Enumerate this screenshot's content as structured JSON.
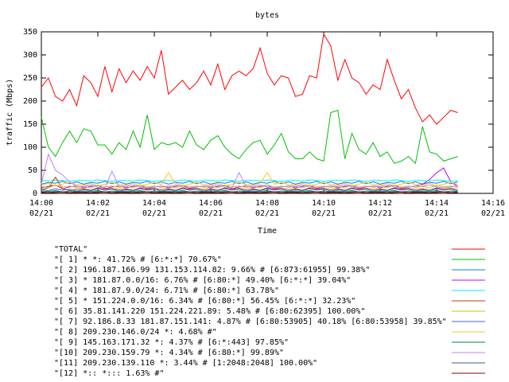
{
  "chart_data": {
    "type": "line",
    "title": "bytes",
    "x_label": "Time",
    "y_label": "traffic (Mbps)",
    "xlim": [
      0,
      16
    ],
    "ylim": [
      0,
      350
    ],
    "xticks": [
      {
        "value": 0,
        "label": "14:00\n02/21"
      },
      {
        "value": 2,
        "label": "14:02\n02/21"
      },
      {
        "value": 4,
        "label": "14:04\n02/21"
      },
      {
        "value": 6,
        "label": "14:06\n02/21"
      },
      {
        "value": 8,
        "label": "14:08\n02/21"
      },
      {
        "value": 10,
        "label": "14:10\n02/21"
      },
      {
        "value": 12,
        "label": "14:12\n02/21"
      },
      {
        "value": 14,
        "label": "14:14\n02/21"
      },
      {
        "value": 16,
        "label": "14:16\n02/21"
      }
    ],
    "yticks": [
      0,
      50,
      100,
      150,
      200,
      250,
      300,
      350
    ],
    "x": [
      0,
      0.25,
      0.5,
      0.75,
      1,
      1.25,
      1.5,
      1.75,
      2,
      2.25,
      2.5,
      2.75,
      3,
      3.25,
      3.5,
      3.75,
      4,
      4.25,
      4.5,
      4.75,
      5,
      5.25,
      5.5,
      5.75,
      6,
      6.25,
      6.5,
      6.75,
      7,
      7.25,
      7.5,
      7.75,
      8,
      8.25,
      8.5,
      8.75,
      9,
      9.25,
      9.5,
      9.75,
      10,
      10.25,
      10.5,
      10.75,
      11,
      11.25,
      11.5,
      11.75,
      12,
      12.25,
      12.5,
      12.75,
      13,
      13.25,
      13.5,
      13.75,
      14,
      14.25,
      14.5,
      14.75
    ],
    "series": [
      {
        "name": "\"TOTAL\"",
        "color": "#ff0000",
        "values": [
          230,
          250,
          210,
          200,
          225,
          190,
          255,
          240,
          210,
          275,
          220,
          270,
          240,
          265,
          245,
          275,
          250,
          310,
          215,
          230,
          245,
          225,
          240,
          265,
          235,
          280,
          225,
          255,
          265,
          255,
          270,
          315,
          260,
          235,
          255,
          250,
          210,
          215,
          255,
          250,
          345,
          320,
          245,
          290,
          250,
          240,
          215,
          235,
          225,
          290,
          245,
          205,
          225,
          185,
          155,
          170,
          150,
          165,
          180,
          175
        ]
      },
      {
        "name": "\"[ 1] * *: 41.72% # [6:*:*] 70.67%\"",
        "color": "#00c000",
        "values": [
          165,
          100,
          80,
          110,
          135,
          110,
          140,
          135,
          105,
          105,
          85,
          110,
          95,
          135,
          100,
          170,
          95,
          110,
          105,
          110,
          100,
          135,
          105,
          95,
          115,
          125,
          100,
          85,
          75,
          95,
          110,
          115,
          85,
          105,
          130,
          90,
          75,
          75,
          90,
          75,
          70,
          175,
          180,
          75,
          130,
          95,
          85,
          110,
          80,
          90,
          65,
          70,
          80,
          65,
          145,
          90,
          85,
          70,
          75,
          80
        ]
      },
      {
        "name": "\"[ 2] 196.187.166.99 131.153.114.82: 9.66% # [6:873:61955] 99.38%\"",
        "color": "#0080ff",
        "values": [
          20,
          24,
          22,
          26,
          21,
          25,
          20,
          24,
          22,
          26,
          21,
          25,
          20,
          24,
          22,
          26,
          21,
          25,
          20,
          24,
          22,
          26,
          21,
          25,
          20,
          24,
          22,
          26,
          21,
          25,
          20,
          24,
          22,
          26,
          21,
          25,
          20,
          24,
          22,
          26,
          21,
          25,
          20,
          24,
          22,
          26,
          21,
          25,
          20,
          24,
          22,
          26,
          21,
          25,
          20,
          24,
          22,
          26,
          21,
          25
        ]
      },
      {
        "name": "\"[ 3] * 181.87.0.0/16: 6.76% # [6:80:*] 49.40% [6:*:*] 39.04%\"",
        "color": "#c000ff",
        "values": [
          12,
          15,
          18,
          10,
          14,
          16,
          12,
          15,
          18,
          10,
          14,
          16,
          12,
          15,
          18,
          10,
          14,
          16,
          12,
          15,
          18,
          10,
          14,
          16,
          12,
          15,
          18,
          10,
          14,
          16,
          12,
          15,
          18,
          10,
          14,
          16,
          12,
          15,
          18,
          10,
          14,
          16,
          12,
          15,
          18,
          10,
          14,
          16,
          12,
          15,
          18,
          10,
          14,
          16,
          20,
          30,
          45,
          55,
          25,
          15
        ]
      },
      {
        "name": "\"[ 4] * 181.87.9.0/24: 6.71% # [6:80:*] 63.78%\"",
        "color": "#00eeee",
        "values": [
          28,
          27,
          29,
          28,
          26,
          28,
          28,
          27,
          29,
          28,
          26,
          28,
          28,
          27,
          29,
          28,
          26,
          28,
          28,
          27,
          29,
          28,
          26,
          28,
          28,
          27,
          29,
          28,
          26,
          28,
          28,
          27,
          29,
          28,
          26,
          28,
          28,
          27,
          29,
          28,
          26,
          28,
          28,
          27,
          29,
          28,
          26,
          28,
          28,
          27,
          29,
          28,
          26,
          28,
          28,
          27,
          29,
          28,
          26,
          28
        ]
      },
      {
        "name": "\"[ 5] * 151.224.0.0/16: 6.34% # [6:80:*] 56.45% [6:*:*] 32.23%\"",
        "color": "#c04000",
        "values": [
          8,
          12,
          35,
          10,
          6,
          9,
          10,
          7,
          12,
          9,
          11,
          8,
          10,
          7,
          12,
          9,
          11,
          8,
          10,
          7,
          12,
          9,
          11,
          8,
          10,
          7,
          12,
          9,
          11,
          8,
          10,
          7,
          12,
          9,
          11,
          8,
          10,
          7,
          12,
          9,
          11,
          8,
          10,
          7,
          12,
          9,
          11,
          8,
          10,
          7,
          12,
          9,
          11,
          8,
          10,
          7,
          12,
          9,
          11,
          8
        ]
      },
      {
        "name": "\"[ 6] 35.81.141.220 151.224.221.89: 5.48% # [6:80:62395] 100.00%\"",
        "color": "#c8c800",
        "values": [
          15,
          12,
          18,
          14,
          16,
          13,
          15,
          12,
          18,
          14,
          16,
          13,
          15,
          12,
          18,
          14,
          16,
          13,
          15,
          12,
          18,
          14,
          16,
          13,
          15,
          12,
          18,
          14,
          16,
          13,
          15,
          12,
          18,
          14,
          16,
          13,
          15,
          12,
          18,
          14,
          16,
          13,
          15,
          12,
          18,
          14,
          16,
          13,
          15,
          12,
          18,
          14,
          16,
          13,
          15,
          12,
          18,
          14,
          16,
          13
        ]
      },
      {
        "name": "\"[ 7] 92.186.8.33 181.87.151.141: 4.87% # [6:80:53905] 40.18% [6:80:53958] 39.85%\"",
        "color": "#4169e1",
        "values": [
          8,
          6,
          10,
          7,
          9,
          5,
          8,
          6,
          10,
          7,
          9,
          5,
          8,
          6,
          10,
          7,
          9,
          5,
          8,
          6,
          10,
          7,
          9,
          5,
          8,
          6,
          10,
          7,
          9,
          5,
          8,
          6,
          10,
          7,
          9,
          5,
          8,
          6,
          10,
          7,
          9,
          5,
          8,
          6,
          10,
          7,
          9,
          5,
          8,
          6,
          10,
          7,
          9,
          5,
          8,
          6,
          10,
          7,
          9,
          5
        ]
      },
      {
        "name": "\"[ 8] 209.230.146.0/24 *: 4.68% #\"",
        "color": "#ffc020",
        "values": [
          18,
          22,
          16,
          20,
          24,
          19,
          18,
          22,
          16,
          20,
          24,
          19,
          18,
          22,
          16,
          20,
          24,
          19,
          45,
          22,
          16,
          20,
          24,
          19,
          18,
          22,
          16,
          20,
          24,
          19,
          18,
          22,
          45,
          20,
          24,
          19,
          18,
          22,
          16,
          20,
          24,
          19,
          18,
          22,
          16,
          20,
          24,
          19,
          18,
          22,
          16,
          20,
          24,
          19,
          18,
          22,
          16,
          20,
          24,
          19
        ]
      },
      {
        "name": "\"[ 9] 145.163.171.32 *: 4.37% # [6:*:443] 97.85%\"",
        "color": "#008040",
        "values": [
          5,
          4,
          6,
          3,
          5,
          4,
          5,
          4,
          6,
          3,
          5,
          4,
          5,
          4,
          6,
          3,
          5,
          4,
          5,
          4,
          6,
          3,
          5,
          4,
          5,
          4,
          6,
          3,
          5,
          4,
          5,
          4,
          6,
          3,
          5,
          4,
          5,
          4,
          6,
          3,
          5,
          4,
          5,
          4,
          6,
          3,
          5,
          4,
          5,
          4,
          6,
          3,
          5,
          4,
          5,
          4,
          6,
          3,
          5,
          4
        ]
      },
      {
        "name": "\"[10] 209.230.159.79 *: 4.34% # [6:80:*] 99.89%\"",
        "color": "#c080ff",
        "values": [
          20,
          85,
          50,
          40,
          25,
          15,
          15,
          18,
          14,
          12,
          48,
          16,
          15,
          18,
          14,
          12,
          14,
          16,
          15,
          18,
          14,
          12,
          14,
          16,
          15,
          18,
          14,
          12,
          45,
          16,
          15,
          18,
          14,
          12,
          14,
          16,
          15,
          18,
          14,
          12,
          14,
          16,
          15,
          18,
          14,
          12,
          14,
          16,
          15,
          18,
          14,
          12,
          14,
          16,
          15,
          18,
          14,
          12,
          14,
          16
        ]
      },
      {
        "name": "\"[11] 209.230.139.110 *: 3.44% # [1:2048:2048] 100.00%\"",
        "color": "#306080",
        "values": [
          3,
          2,
          4,
          3,
          2,
          3,
          3,
          2,
          4,
          3,
          2,
          3,
          3,
          2,
          4,
          3,
          2,
          3,
          3,
          2,
          4,
          3,
          2,
          3,
          3,
          2,
          4,
          3,
          2,
          3,
          3,
          2,
          4,
          3,
          2,
          3,
          3,
          2,
          4,
          3,
          2,
          3,
          3,
          2,
          4,
          3,
          2,
          3,
          3,
          2,
          4,
          3,
          2,
          3,
          3,
          2,
          4,
          3,
          2,
          3
        ]
      },
      {
        "name": "\"[12] *:: *::: 1.63% #\"",
        "color": "#8b0000",
        "values": [
          2,
          1,
          2,
          3,
          1,
          2,
          2,
          1,
          2,
          3,
          1,
          2,
          2,
          1,
          2,
          3,
          1,
          2,
          2,
          1,
          2,
          3,
          1,
          2,
          2,
          1,
          2,
          3,
          1,
          2,
          2,
          1,
          2,
          3,
          1,
          2,
          2,
          1,
          2,
          3,
          1,
          2,
          2,
          1,
          2,
          3,
          1,
          2,
          2,
          1,
          2,
          3,
          1,
          2,
          2,
          1,
          2,
          3,
          1,
          2
        ]
      }
    ]
  }
}
